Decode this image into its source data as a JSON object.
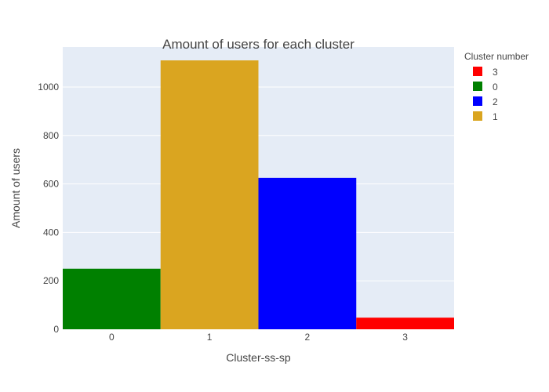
{
  "chart_data": {
    "type": "bar",
    "title": "Amount of users for each cluster",
    "xlabel": "Cluster-ss-sp",
    "ylabel": "Amount of users",
    "categories": [
      "0",
      "1",
      "2",
      "3"
    ],
    "values": [
      250,
      1110,
      625,
      48
    ],
    "colors": [
      "#008000",
      "#DAA520",
      "#0000FF",
      "#FF0000"
    ],
    "ylim": [
      0,
      1165
    ],
    "yticks": [
      0,
      200,
      400,
      600,
      800,
      1000
    ],
    "ytick_labels": [
      "0",
      "200",
      "400",
      "600",
      "800",
      "1000"
    ],
    "grid": true,
    "plot_background": "#E5ECF6",
    "legend": {
      "title": "Cluster number",
      "placement": "right",
      "items": [
        {
          "label": "3",
          "color": "#FF0000"
        },
        {
          "label": "0",
          "color": "#008000"
        },
        {
          "label": "2",
          "color": "#0000FF"
        },
        {
          "label": "1",
          "color": "#DAA520"
        }
      ]
    }
  }
}
